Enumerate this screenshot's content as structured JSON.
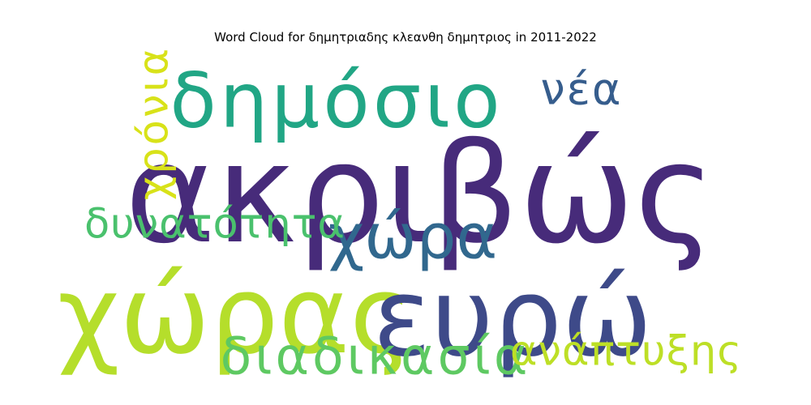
{
  "title": "Word Cloud for δημητριαδης κλεανθη δημητριος in 2011-2022",
  "chart_data": {
    "type": "wordcloud",
    "title": "Word Cloud for δημητριαδης κλεανθη δημητριος in 2011-2022",
    "words": [
      {
        "text": "ακριβώς",
        "weight": 1.0,
        "color": "#472b7a",
        "orientation": "horizontal"
      },
      {
        "text": "χώρας",
        "weight": 0.78,
        "color": "#b5de2b",
        "orientation": "horizontal"
      },
      {
        "text": "ευρώ",
        "weight": 0.78,
        "color": "#3e4a89",
        "orientation": "horizontal"
      },
      {
        "text": "δημόσιο",
        "weight": 0.55,
        "color": "#21a685",
        "orientation": "horizontal"
      },
      {
        "text": "χώρα",
        "weight": 0.45,
        "color": "#31688e",
        "orientation": "horizontal"
      },
      {
        "text": "διαδικασία",
        "weight": 0.37,
        "color": "#5ec962",
        "orientation": "horizontal"
      },
      {
        "text": "νέα",
        "weight": 0.32,
        "color": "#365d8d",
        "orientation": "horizontal"
      },
      {
        "text": "δυνατότητα",
        "weight": 0.3,
        "color": "#4ac16d",
        "orientation": "horizontal"
      },
      {
        "text": "ανάπτυξης",
        "weight": 0.3,
        "color": "#bddf26",
        "orientation": "horizontal"
      },
      {
        "text": "χρόνια",
        "weight": 0.3,
        "color": "#d8e219",
        "orientation": "vertical"
      }
    ]
  }
}
